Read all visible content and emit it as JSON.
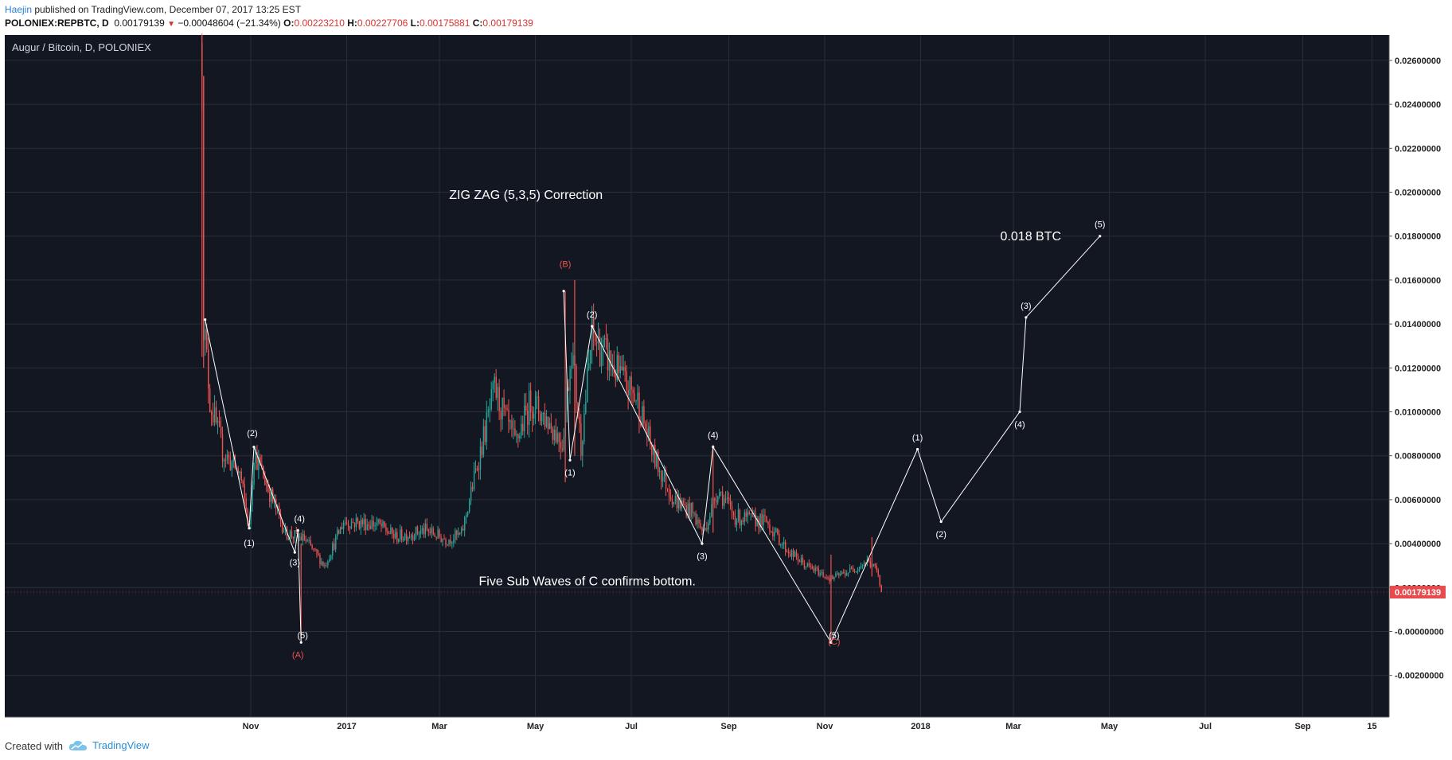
{
  "header": {
    "author": "Haejin",
    "published_text": " published on TradingView.com, December 07, 2017 13:25 EST",
    "symbol": "POLONIEX:REPBTC, D",
    "last": "0.00179139",
    "change": "−0.00048604 (−21.34%)",
    "o_label": "O:",
    "o_value": "0.00223210",
    "h_label": "H:",
    "h_value": "0.00227706",
    "l_label": "L:",
    "l_value": "0.00175881",
    "c_label": "C:",
    "c_value": "0.00179139"
  },
  "footer": {
    "created_with": "Created with",
    "brand": "TradingView"
  },
  "colors": {
    "up": "#26a69a",
    "down": "#ef5350",
    "background": "#131722",
    "grid": "#2a2e39",
    "text": "#d1d4dc",
    "price_tag": "#e74b4d"
  },
  "chart_data": {
    "type": "candlestick",
    "title": "Augur / Bitcoin, D, POLONIEX",
    "y_ticks": [
      "0.02600000",
      "0.02400000",
      "0.02200000",
      "0.02000000",
      "0.01800000",
      "0.01600000",
      "0.01400000",
      "0.01200000",
      "0.01000000",
      "0.00800000",
      "0.00600000",
      "0.00400000",
      "0.00200000",
      "-0.00000000",
      "-0.00200000"
    ],
    "x_ticks": [
      "Nov",
      "2017",
      "Mar",
      "May",
      "Jul",
      "Sep",
      "Nov",
      "2018",
      "Mar",
      "May",
      "Jul",
      "Sep",
      "15"
    ],
    "last_price_label": "0.00179139",
    "anchors": [
      {
        "date": "2016-10-01",
        "price": 0.0268
      },
      {
        "date": "2016-10-02",
        "price": 0.0142
      },
      {
        "date": "2016-10-06",
        "price": 0.0105
      },
      {
        "date": "2016-10-14",
        "price": 0.0082
      },
      {
        "date": "2016-10-25",
        "price": 0.0072
      },
      {
        "date": "2016-10-31",
        "price": 0.0047
      },
      {
        "date": "2016-11-03",
        "price": 0.0082
      },
      {
        "date": "2016-11-12",
        "price": 0.0065
      },
      {
        "date": "2016-11-23",
        "price": 0.0045
      },
      {
        "date": "2016-12-05",
        "price": 0.0042
      },
      {
        "date": "2016-12-18",
        "price": 0.003
      },
      {
        "date": "2016-12-30",
        "price": 0.005
      },
      {
        "date": "2017-01-20",
        "price": 0.0049
      },
      {
        "date": "2017-02-01",
        "price": 0.0043
      },
      {
        "date": "2017-02-20",
        "price": 0.0046
      },
      {
        "date": "2017-03-05",
        "price": 0.0042
      },
      {
        "date": "2017-03-15",
        "price": 0.0044
      },
      {
        "date": "2017-03-25",
        "price": 0.0076
      },
      {
        "date": "2017-04-05",
        "price": 0.011
      },
      {
        "date": "2017-04-18",
        "price": 0.0085
      },
      {
        "date": "2017-04-28",
        "price": 0.0105
      },
      {
        "date": "2017-05-10",
        "price": 0.0095
      },
      {
        "date": "2017-05-18",
        "price": 0.0086
      },
      {
        "date": "2017-05-24",
        "price": 0.013
      },
      {
        "date": "2017-05-30",
        "price": 0.0085
      },
      {
        "date": "2017-06-06",
        "price": 0.0135
      },
      {
        "date": "2017-06-20",
        "price": 0.012
      },
      {
        "date": "2017-07-05",
        "price": 0.0105
      },
      {
        "date": "2017-07-15",
        "price": 0.008
      },
      {
        "date": "2017-07-28",
        "price": 0.006
      },
      {
        "date": "2017-08-08",
        "price": 0.0055
      },
      {
        "date": "2017-08-16",
        "price": 0.0045
      },
      {
        "date": "2017-08-25",
        "price": 0.0065
      },
      {
        "date": "2017-09-05",
        "price": 0.0052
      },
      {
        "date": "2017-09-25",
        "price": 0.005
      },
      {
        "date": "2017-10-08",
        "price": 0.0037
      },
      {
        "date": "2017-10-20",
        "price": 0.003
      },
      {
        "date": "2017-11-05",
        "price": 0.0024
      },
      {
        "date": "2017-11-18",
        "price": 0.0028
      },
      {
        "date": "2017-11-28",
        "price": 0.0032
      },
      {
        "date": "2017-12-04",
        "price": 0.0028
      },
      {
        "date": "2017-12-07",
        "price": 0.0018
      }
    ],
    "wicks": [
      {
        "date": "2016-10-01",
        "low": 0.0125,
        "high": 0.031
      },
      {
        "date": "2016-10-02",
        "low": 0.012,
        "high": 0.0182
      },
      {
        "date": "2016-12-03",
        "low": -0.0005,
        "high": 0.004
      },
      {
        "date": "2017-05-20",
        "low": 0.0068,
        "high": 0.0155
      },
      {
        "date": "2017-05-26",
        "low": 0.008,
        "high": 0.016
      },
      {
        "date": "2017-08-22",
        "low": 0.0045,
        "high": 0.0085
      },
      {
        "date": "2017-11-05",
        "low": -0.0005,
        "high": 0.0035
      },
      {
        "date": "2017-12-01",
        "low": 0.0025,
        "high": 0.0043
      }
    ],
    "wave_lines": [
      {
        "name": "impulse-a",
        "points": [
          {
            "date": "2016-10-03",
            "price": 0.0142
          },
          {
            "date": "2016-10-31",
            "price": 0.0047
          },
          {
            "date": "2016-11-03",
            "price": 0.0084
          },
          {
            "date": "2016-11-29",
            "price": 0.0036
          },
          {
            "date": "2016-12-01",
            "price": 0.0046
          },
          {
            "date": "2016-12-03",
            "price": -0.0005
          }
        ]
      },
      {
        "name": "b-leg",
        "points": [
          {
            "date": "2017-05-19",
            "price": 0.0155
          },
          {
            "date": "2017-05-23",
            "price": 0.0078
          },
          {
            "date": "2017-06-06",
            "price": 0.0139
          },
          {
            "date": "2017-08-15",
            "price": 0.004
          },
          {
            "date": "2017-08-22",
            "price": 0.0084
          },
          {
            "date": "2017-11-05",
            "price": -0.0005
          }
        ]
      },
      {
        "name": "projection",
        "points": [
          {
            "date": "2017-11-05",
            "price": -0.0005
          },
          {
            "date": "2017-12-30",
            "price": 0.0083
          },
          {
            "date": "2018-01-14",
            "price": 0.005
          },
          {
            "date": "2018-03-05",
            "price": 0.01
          },
          {
            "date": "2018-03-09",
            "price": 0.0143
          },
          {
            "date": "2018-04-25",
            "price": 0.018
          }
        ]
      }
    ],
    "annotations": [
      {
        "text": "ZIG ZAG (5,3,5) Correction",
        "date": "2017-04-25",
        "price": 0.0197,
        "size": 16,
        "color": "#ffffff"
      },
      {
        "text": "Five Sub Waves of C confirms bottom.",
        "date": "2017-06-03",
        "price": 0.0021,
        "size": 16,
        "color": "#ffffff"
      },
      {
        "text": "0.018 BTC",
        "date": "2018-03-12",
        "price": 0.0178,
        "size": 16,
        "color": "#ffffff"
      },
      {
        "text": "(B)",
        "date": "2017-05-20",
        "price": 0.0166,
        "size": 11,
        "color": "#ef5350"
      },
      {
        "text": "(A)",
        "date": "2016-12-01",
        "price": -0.0012,
        "size": 11,
        "color": "#ef5350"
      },
      {
        "text": "(C)",
        "date": "2017-11-07",
        "price": -0.0006,
        "size": 11,
        "color": "#ef5350"
      },
      {
        "text": "(1)",
        "date": "2016-10-31",
        "price": 0.0039,
        "size": 11,
        "color": "#ffffff"
      },
      {
        "text": "(2)",
        "date": "2016-11-02",
        "price": 0.0089,
        "size": 11,
        "color": "#ffffff"
      },
      {
        "text": "(3)",
        "date": "2016-11-29",
        "price": 0.003,
        "size": 11,
        "color": "#ffffff"
      },
      {
        "text": "(4)",
        "date": "2016-12-02",
        "price": 0.005,
        "size": 11,
        "color": "#ffffff"
      },
      {
        "text": "(5)",
        "date": "2016-12-04",
        "price": -0.0003,
        "size": 11,
        "color": "#ffffff"
      },
      {
        "text": "(1)",
        "date": "2017-05-23",
        "price": 0.0071,
        "size": 11,
        "color": "#ffffff"
      },
      {
        "text": "(2)",
        "date": "2017-06-06",
        "price": 0.0143,
        "size": 11,
        "color": "#ffffff"
      },
      {
        "text": "(3)",
        "date": "2017-08-15",
        "price": 0.0033,
        "size": 11,
        "color": "#ffffff"
      },
      {
        "text": "(4)",
        "date": "2017-08-22",
        "price": 0.0088,
        "size": 11,
        "color": "#ffffff"
      },
      {
        "text": "(5)",
        "date": "2017-11-07",
        "price": -0.0003,
        "size": 11,
        "color": "#ffffff"
      },
      {
        "text": "(1)",
        "date": "2017-12-30",
        "price": 0.0087,
        "size": 11,
        "color": "#ffffff"
      },
      {
        "text": "(2)",
        "date": "2018-01-14",
        "price": 0.0043,
        "size": 11,
        "color": "#ffffff"
      },
      {
        "text": "(3)",
        "date": "2018-03-09",
        "price": 0.0147,
        "size": 11,
        "color": "#ffffff"
      },
      {
        "text": "(4)",
        "date": "2018-03-05",
        "price": 0.0093,
        "size": 11,
        "color": "#ffffff"
      },
      {
        "text": "(5)",
        "date": "2018-04-25",
        "price": 0.0184,
        "size": 11,
        "color": "#ffffff"
      }
    ]
  }
}
